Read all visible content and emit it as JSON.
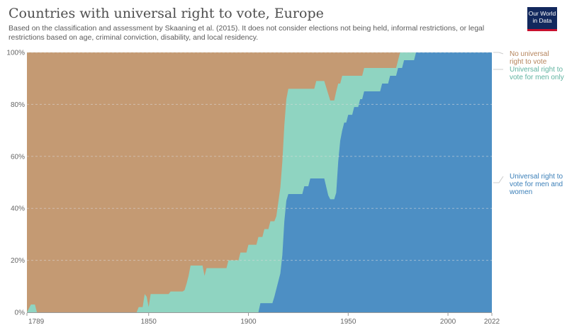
{
  "header": {
    "title": "Countries with universal right to vote, Europe",
    "subtitle": "Based on the classification and assessment by Skaaning et al. (2015). It does not consider elections not being held, informal restrictions, or legal restrictions based on age, criminal conviction, disability, and local residency.",
    "logo_line1": "Our World",
    "logo_line2": "in Data"
  },
  "chart_data": {
    "type": "area",
    "stacked": true,
    "percent": true,
    "x_ticks": [
      1789,
      1850,
      1900,
      1950,
      2000,
      2022
    ],
    "y_ticks": [
      "0%",
      "20%",
      "40%",
      "60%",
      "80%",
      "100%"
    ],
    "xlim": [
      1789,
      2022
    ],
    "ylim": [
      0,
      100
    ],
    "grid": "horizontal dashed",
    "legend_position": "right",
    "colors": {
      "men_and_women": "#4d8fc4",
      "men_only": "#8fd4c1",
      "none": "#c49a73"
    },
    "series": [
      {
        "name": "Universal right to vote for men and women",
        "key": "men_and_women",
        "legend_lines": [
          "Universal right to",
          "vote for men and",
          "women"
        ],
        "points": [
          [
            1789,
            0
          ],
          [
            1905,
            0
          ],
          [
            1906,
            3.5
          ],
          [
            1912,
            3.5
          ],
          [
            1913,
            6
          ],
          [
            1914,
            9
          ],
          [
            1915,
            12
          ],
          [
            1916,
            15
          ],
          [
            1917,
            22
          ],
          [
            1918,
            35
          ],
          [
            1919,
            43
          ],
          [
            1920,
            45.5
          ],
          [
            1927,
            45.5
          ],
          [
            1928,
            48.5
          ],
          [
            1930,
            48.5
          ],
          [
            1931,
            51.5
          ],
          [
            1938,
            51.5
          ],
          [
            1940,
            45
          ],
          [
            1941,
            43.5
          ],
          [
            1943,
            43.5
          ],
          [
            1944,
            46
          ],
          [
            1945,
            58
          ],
          [
            1946,
            66
          ],
          [
            1947,
            70
          ],
          [
            1948,
            73
          ],
          [
            1949,
            73
          ],
          [
            1950,
            76
          ],
          [
            1952,
            76
          ],
          [
            1953,
            79
          ],
          [
            1955,
            79
          ],
          [
            1956,
            82
          ],
          [
            1957,
            82
          ],
          [
            1958,
            85
          ],
          [
            1966,
            85
          ],
          [
            1967,
            88
          ],
          [
            1970,
            88
          ],
          [
            1971,
            91
          ],
          [
            1974,
            91
          ],
          [
            1975,
            94
          ],
          [
            1977,
            94
          ],
          [
            1978,
            97
          ],
          [
            1983,
            97
          ],
          [
            1984,
            100
          ],
          [
            2022,
            100
          ]
        ]
      },
      {
        "name": "Universal right to vote for men only",
        "key": "men_only",
        "legend_lines": [
          "Universal right to",
          "vote for men only"
        ],
        "points": [
          [
            1789,
            0
          ],
          [
            1791,
            3
          ],
          [
            1793,
            3
          ],
          [
            1794,
            0
          ],
          [
            1844,
            0
          ],
          [
            1845,
            2
          ],
          [
            1847,
            2
          ],
          [
            1848,
            7
          ],
          [
            1849,
            6
          ],
          [
            1850,
            2
          ],
          [
            1851,
            7
          ],
          [
            1860,
            7
          ],
          [
            1861,
            8
          ],
          [
            1867,
            8
          ],
          [
            1868,
            8.5
          ],
          [
            1869,
            11
          ],
          [
            1870,
            14
          ],
          [
            1871,
            18
          ],
          [
            1877,
            18
          ],
          [
            1878,
            14
          ],
          [
            1879,
            17
          ],
          [
            1889,
            17
          ],
          [
            1890,
            20
          ],
          [
            1895,
            20
          ],
          [
            1896,
            23
          ],
          [
            1899,
            23
          ],
          [
            1900,
            26
          ],
          [
            1904,
            26
          ],
          [
            1905,
            29
          ],
          [
            1907,
            29
          ],
          [
            1908,
            32
          ],
          [
            1910,
            32
          ],
          [
            1911,
            35
          ],
          [
            1913,
            35
          ],
          [
            1914,
            37
          ],
          [
            1916,
            48
          ],
          [
            1917,
            58
          ],
          [
            1918,
            72
          ],
          [
            1919,
            82
          ],
          [
            1920,
            86
          ],
          [
            1921,
            86
          ],
          [
            1933,
            86
          ],
          [
            1934,
            89
          ],
          [
            1938,
            89
          ],
          [
            1940,
            84
          ],
          [
            1941,
            81.5
          ],
          [
            1943,
            81.5
          ],
          [
            1944,
            85
          ],
          [
            1945,
            88
          ],
          [
            1946,
            88
          ],
          [
            1947,
            91
          ],
          [
            1956,
            91
          ],
          [
            1957,
            91
          ],
          [
            1958,
            94
          ],
          [
            1966,
            94
          ],
          [
            1967,
            94
          ],
          [
            1970,
            94
          ],
          [
            1974,
            94
          ],
          [
            1975,
            97
          ],
          [
            1976,
            100
          ],
          [
            2022,
            100
          ]
        ]
      },
      {
        "name": "No universal right to vote",
        "key": "none",
        "legend_lines": [
          "No universal",
          "right to vote"
        ],
        "points": [
          [
            1789,
            100
          ],
          [
            2022,
            100
          ]
        ]
      }
    ]
  }
}
